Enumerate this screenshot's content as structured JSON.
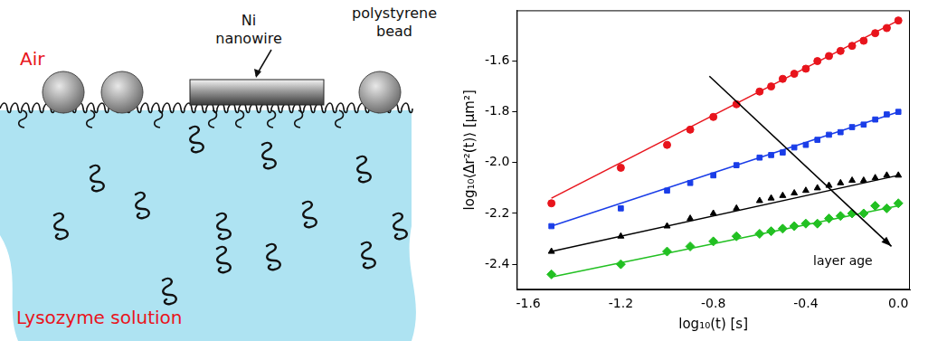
{
  "diagram": {
    "air": "Air",
    "nanowire": "Ni nanowire",
    "bead": "polystyrene bead",
    "solution": "Lysozyme solution"
  },
  "chart_data": {
    "type": "scatter",
    "x_label": "log₁₀(t) [s]",
    "y_label": "log₁₀⟨Δr²(t)⟩ [μm²]",
    "x": [
      -1.5,
      -1.2,
      -1.0,
      -0.9,
      -0.8,
      -0.7,
      -0.6,
      -0.55,
      -0.5,
      -0.45,
      -0.4,
      -0.35,
      -0.3,
      -0.25,
      -0.2,
      -0.15,
      -0.1,
      -0.05,
      0.0
    ],
    "series": [
      {
        "color": "#e8141c",
        "marker": "circle",
        "values": [
          -2.16,
          -2.02,
          -1.93,
          -1.87,
          -1.82,
          -1.77,
          -1.72,
          -1.7,
          -1.67,
          -1.65,
          -1.63,
          -1.6,
          -1.58,
          -1.56,
          -1.54,
          -1.52,
          -1.49,
          -1.47,
          -1.44
        ],
        "fit": {
          "x": [
            -1.5,
            0.0
          ],
          "values": [
            -2.14,
            -1.44
          ]
        }
      },
      {
        "color": "#1a3de8",
        "marker": "square",
        "values": [
          -2.25,
          -2.18,
          -2.11,
          -2.08,
          -2.05,
          -2.01,
          -1.98,
          -1.97,
          -1.96,
          -1.94,
          -1.93,
          -1.91,
          -1.89,
          -1.88,
          -1.86,
          -1.85,
          -1.83,
          -1.81,
          -1.8
        ],
        "fit": {
          "x": [
            -1.5,
            0.0
          ],
          "values": [
            -2.25,
            -1.8
          ]
        }
      },
      {
        "color": "#000000",
        "marker": "triangle",
        "values": [
          -2.35,
          -2.29,
          -2.25,
          -2.22,
          -2.2,
          -2.18,
          -2.15,
          -2.14,
          -2.13,
          -2.12,
          -2.11,
          -2.1,
          -2.09,
          -2.08,
          -2.07,
          -2.07,
          -2.06,
          -2.05,
          -2.05
        ],
        "fit": {
          "x": [
            -1.5,
            0.0
          ],
          "values": [
            -2.35,
            -2.05
          ]
        }
      },
      {
        "color": "#22c022",
        "marker": "diamond",
        "values": [
          -2.44,
          -2.4,
          -2.35,
          -2.33,
          -2.31,
          -2.29,
          -2.28,
          -2.27,
          -2.26,
          -2.25,
          -2.24,
          -2.24,
          -2.22,
          -2.21,
          -2.2,
          -2.2,
          -2.17,
          -2.18,
          -2.16
        ],
        "fit": {
          "x": [
            -1.5,
            0.0
          ],
          "values": [
            -2.45,
            -2.17
          ]
        }
      }
    ],
    "xlim": [
      -1.65,
      0.05
    ],
    "xticks": [
      -1.6,
      -1.2,
      -0.8,
      -0.4,
      {
        "value": 0,
        "label": "0.0"
      }
    ],
    "ylim": [
      -2.5,
      -1.4
    ],
    "yticks": [
      -2.4,
      -2.2,
      {
        "value": -2.0,
        "label": "-2.0"
      },
      -1.8,
      -1.6
    ],
    "grid": false,
    "annotations": [
      {
        "text": "layer age"
      }
    ]
  }
}
